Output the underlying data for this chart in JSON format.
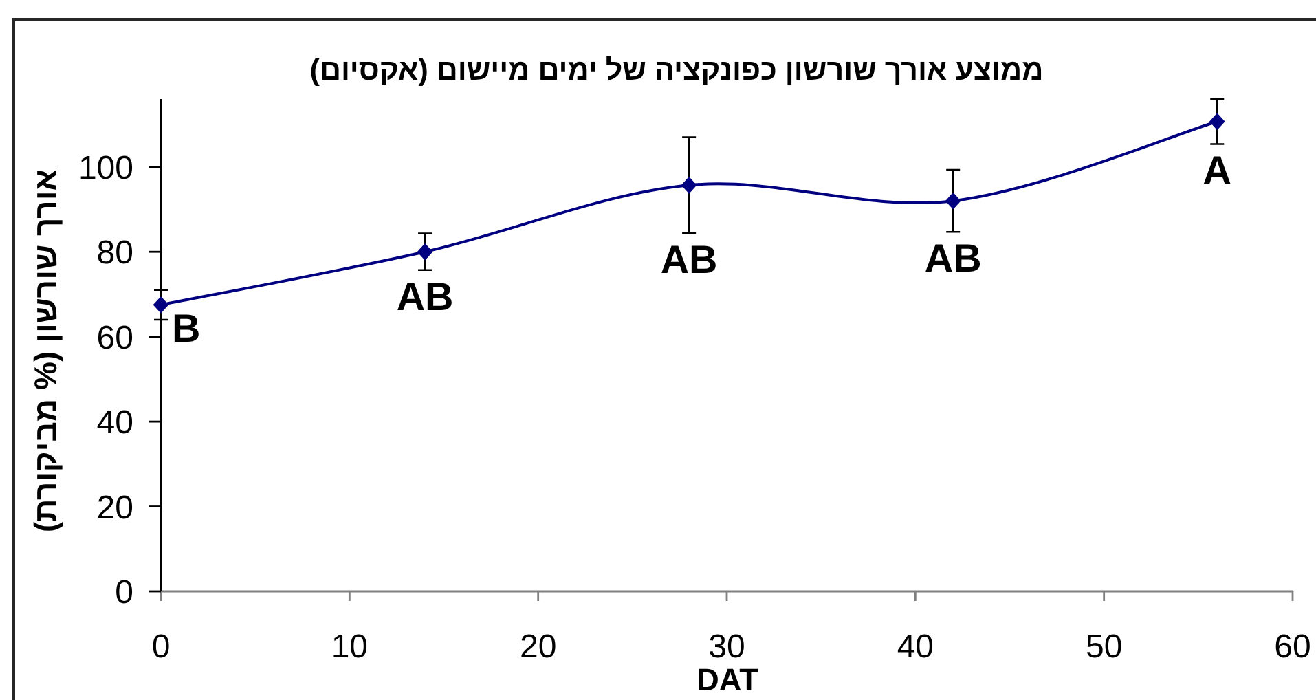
{
  "chart_data": {
    "type": "line",
    "title": "ממוצע אורך שורשון כפונקציה של ימים מיישום (אקסיום)",
    "xlabel": "DAT",
    "ylabel": "אורך שורשון (% מביקורת)",
    "x": [
      0,
      14,
      28,
      42,
      56
    ],
    "series": [
      {
        "color": "#000080",
        "values": [
          67.5,
          80,
          95.7,
          92,
          110.7
        ],
        "errors": [
          3.5,
          4.3,
          11.3,
          7.3,
          5.3
        ]
      }
    ],
    "xlim": [
      0,
      60
    ],
    "xticks": [
      0,
      10,
      20,
      30,
      40,
      50,
      60
    ],
    "ylim": [
      0,
      116
    ],
    "yticks": [
      0,
      20,
      40,
      60,
      80,
      100
    ],
    "marker": "diamond",
    "line_style": "solid",
    "annotations": [
      {
        "text": "B",
        "x": 0,
        "y": 67.5
      },
      {
        "text": "AB",
        "x": 14,
        "y": 80
      },
      {
        "text": "AB",
        "x": 28,
        "y": 95.7
      },
      {
        "text": "AB",
        "x": 42,
        "y": 92
      },
      {
        "text": "A",
        "x": 56,
        "y": 110.7
      }
    ]
  }
}
